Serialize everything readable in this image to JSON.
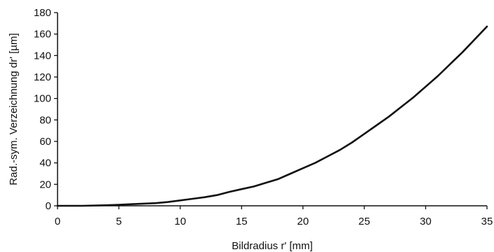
{
  "chart_data": {
    "type": "line",
    "xlabel": "Bildradius r' [mm]",
    "ylabel": "Rad.-sym. Verzeichnung dr' [µm]",
    "xlim": [
      0,
      35
    ],
    "ylim": [
      0,
      180
    ],
    "xticks": [
      "0",
      "5",
      "10",
      "15",
      "20",
      "25",
      "30",
      "35"
    ],
    "yticks": [
      "0",
      "20",
      "40",
      "60",
      "80",
      "100",
      "120",
      "140",
      "160",
      "180"
    ],
    "grid": false,
    "legend": "none",
    "line_color": "#111111",
    "series": [
      {
        "x": [
          0,
          2,
          4,
          5,
          6,
          7,
          8,
          9,
          10,
          11,
          12,
          13,
          14,
          15,
          16,
          17,
          18,
          19,
          20,
          21,
          22,
          23,
          24,
          25,
          26,
          27,
          28,
          29,
          30,
          31,
          32,
          33,
          34,
          35
        ],
        "values": [
          0,
          0,
          0.5,
          1,
          1.5,
          2,
          2.5,
          3.5,
          5,
          6.5,
          8,
          10,
          13,
          15.5,
          18,
          21.5,
          25,
          30,
          35,
          40,
          46,
          52,
          59,
          67,
          75,
          83,
          92,
          101,
          111,
          121,
          132,
          143,
          155,
          167
        ]
      }
    ]
  }
}
